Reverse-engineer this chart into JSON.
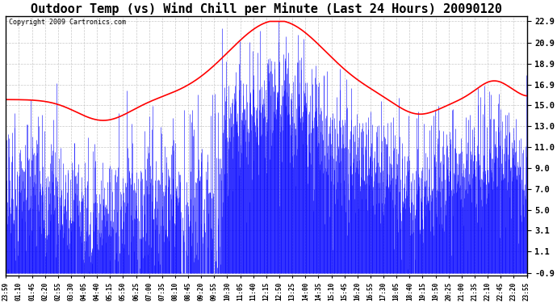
{
  "title": "Outdoor Temp (vs) Wind Chill per Minute (Last 24 Hours) 20090120",
  "copyright": "Copyright 2009 Cartronics.com",
  "yticks": [
    22.9,
    20.9,
    18.9,
    16.9,
    15.0,
    13.0,
    11.0,
    9.0,
    7.0,
    5.0,
    3.1,
    1.1,
    -0.9
  ],
  "ymin": -0.9,
  "ymax": 22.9,
  "xtick_labels": [
    "23:59",
    "01:10",
    "01:45",
    "02:20",
    "02:55",
    "03:30",
    "04:05",
    "04:40",
    "05:15",
    "05:50",
    "06:25",
    "07:00",
    "07:35",
    "08:10",
    "08:45",
    "09:20",
    "09:55",
    "10:30",
    "11:05",
    "11:40",
    "12:15",
    "12:50",
    "13:25",
    "14:00",
    "14:35",
    "15:10",
    "15:45",
    "16:20",
    "16:55",
    "17:30",
    "18:05",
    "18:40",
    "19:15",
    "19:50",
    "20:25",
    "21:00",
    "21:35",
    "22:10",
    "22:45",
    "23:20",
    "23:55"
  ],
  "bg_color": "#ffffff",
  "plot_bg_color": "#ffffff",
  "grid_color": "#bbbbbb",
  "line_color_red": "#ff0000",
  "line_color_blue": "#0000ff",
  "title_fontsize": 11,
  "copyright_fontsize": 6,
  "figwidth": 6.9,
  "figheight": 3.75,
  "dpi": 100
}
